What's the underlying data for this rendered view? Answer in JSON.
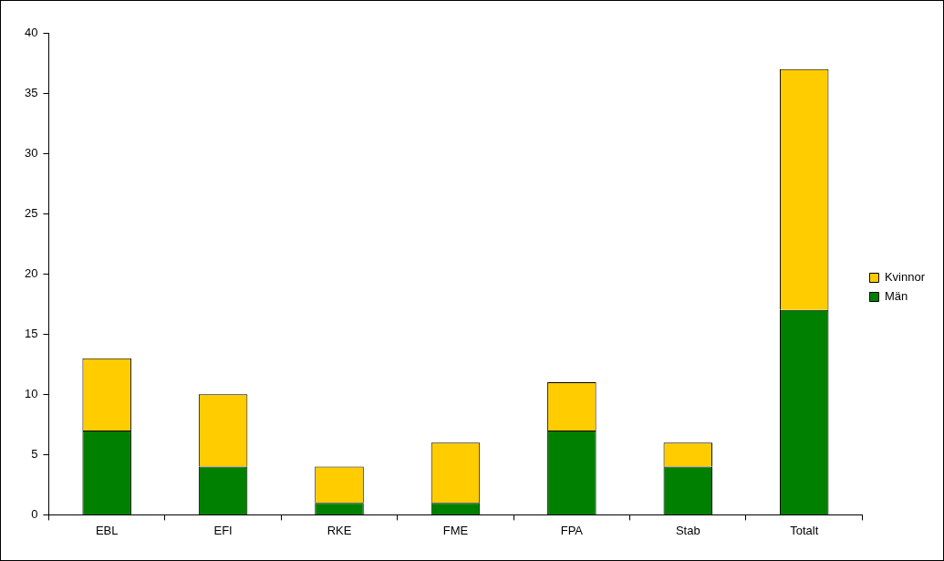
{
  "chart_data": {
    "type": "bar",
    "stacked": true,
    "categories": [
      "EBL",
      "EFI",
      "RKE",
      "FME",
      "FPA",
      "Stab",
      "Totalt"
    ],
    "series": [
      {
        "name": "Män",
        "color": "#008000",
        "values": [
          7,
          4,
          1,
          1,
          7,
          4,
          17
        ]
      },
      {
        "name": "Kvinnor",
        "color": "#ffcc00",
        "values": [
          6,
          6,
          3,
          5,
          4,
          2,
          20
        ]
      }
    ],
    "ylim": [
      0,
      40
    ],
    "yticks": [
      0,
      5,
      10,
      15,
      20,
      25,
      30,
      35,
      40
    ],
    "grid": false,
    "legend": "right"
  }
}
